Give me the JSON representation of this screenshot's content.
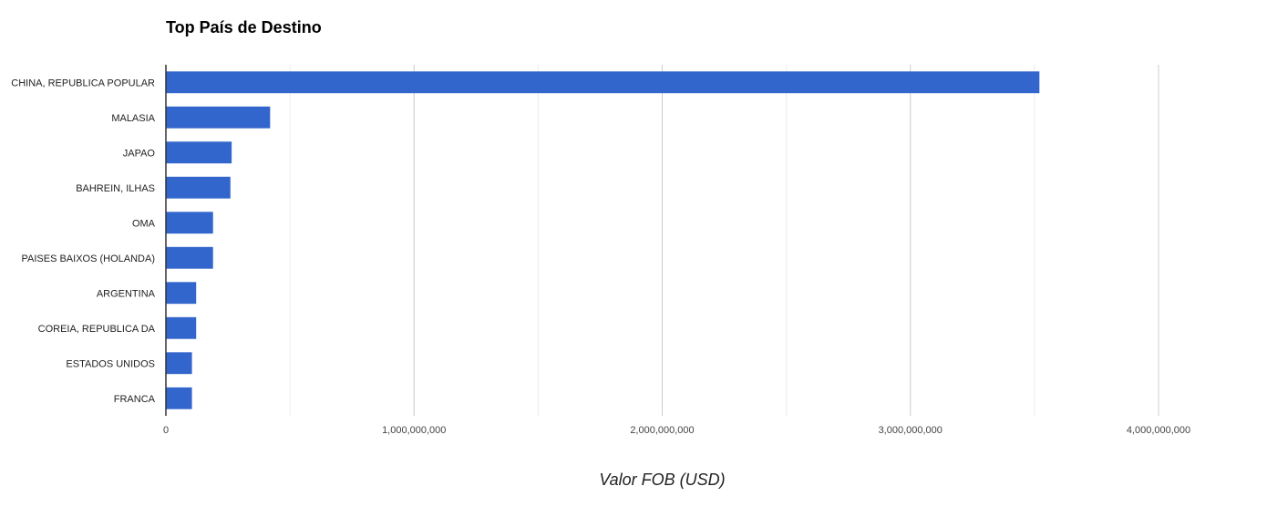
{
  "chart_data": {
    "type": "bar",
    "orientation": "horizontal",
    "title": "Top País de Destino",
    "xlabel": "Valor FOB (USD)",
    "ylabel": "",
    "categories": [
      "CHINA, REPUBLICA POPULAR",
      "MALASIA",
      "JAPAO",
      "BAHREIN, ILHAS",
      "OMA",
      "PAISES BAIXOS (HOLANDA)",
      "ARGENTINA",
      "COREIA, REPUBLICA DA",
      "ESTADOS UNIDOS",
      "FRANCA"
    ],
    "values": [
      3520000000,
      420000000,
      265000000,
      260000000,
      190000000,
      190000000,
      122000000,
      122000000,
      105000000,
      105000000
    ],
    "xlim": [
      0,
      4000000000
    ],
    "x_ticks": [
      0,
      1000000000,
      2000000000,
      3000000000,
      4000000000
    ],
    "x_tick_labels": [
      "0",
      "1,000,000,000",
      "2,000,000,000",
      "3,000,000,000",
      "4,000,000,000"
    ],
    "grid": true,
    "bar_color": "#3366cc"
  }
}
